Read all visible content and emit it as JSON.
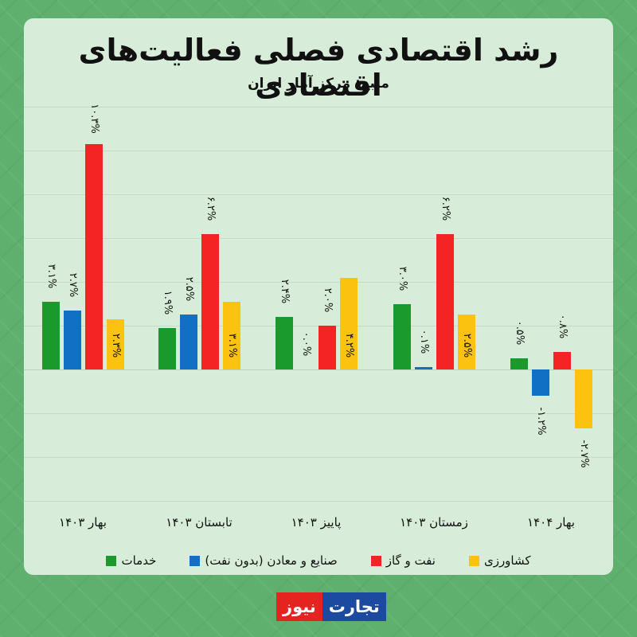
{
  "header": {
    "title": "رشد اقتصادی فصلی فعالیت‌های اقتصادی",
    "subtitle": "منبع: مرکز آمار ایران"
  },
  "logo": {
    "part1": "تجارت",
    "part2": "نیوز",
    "colors": {
      "part1": "#1c4aa0",
      "part2": "#e52421"
    }
  },
  "legend": [
    {
      "label": "خدمات",
      "color": "#1a9a2c"
    },
    {
      "label": "صنایع و معادن (بدون نفت)",
      "color": "#1270c4"
    },
    {
      "label": "نفت و گاز",
      "color": "#f42424"
    },
    {
      "label": "کشاورزی",
      "color": "#fbc210"
    }
  ],
  "chart_data": {
    "type": "bar",
    "title": "رشد اقتصادی فصلی فعالیت‌های اقتصادی",
    "subtitle": "منبع: مرکز آمار ایران",
    "xlabel": "",
    "ylabel": "",
    "unit": "%",
    "grid": true,
    "legend_position": "bottom",
    "ylim": [
      -6,
      12
    ],
    "categories": [
      "بهار ۱۴۰۳",
      "تابستان ۱۴۰۳",
      "پاییز ۱۴۰۳",
      "زمستان ۱۴۰۳",
      "بهار ۱۴۰۴"
    ],
    "series": [
      {
        "name": "خدمات",
        "color": "#1a9a2c",
        "values": [
          3.1,
          1.9,
          2.4,
          3.0,
          0.5
        ],
        "labels": [
          "۳.۱%",
          "۱.۹%",
          "۲.۴%",
          "۳.۰%",
          "۰.۵%"
        ]
      },
      {
        "name": "صنایع و معادن (بدون نفت)",
        "color": "#1270c4",
        "values": [
          2.7,
          2.5,
          0.0,
          0.1,
          -1.2
        ],
        "labels": [
          "۲.۷%",
          "۲.۵%",
          "۰.۰%",
          "۰.۱%",
          "-۱.۲%"
        ]
      },
      {
        "name": "نفت و گاز",
        "color": "#f42424",
        "values": [
          10.3,
          6.2,
          2.0,
          6.2,
          0.8
        ],
        "labels": [
          "۱۰.۳%",
          "۶.۲%",
          "۲.۰%",
          "۶.۲%",
          "۰.۸%"
        ]
      },
      {
        "name": "کشاورزی",
        "color": "#fbc210",
        "values": [
          2.3,
          3.1,
          4.2,
          2.5,
          -2.7
        ],
        "labels": [
          "۲.۳%",
          "۳.۱%",
          "۴.۲%",
          "۲.۵%",
          "-۲.۷%"
        ]
      }
    ]
  }
}
